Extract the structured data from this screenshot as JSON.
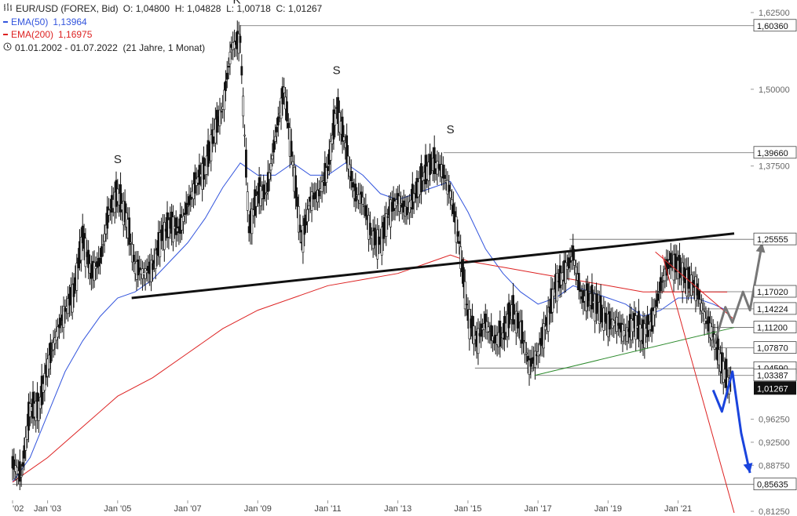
{
  "header": {
    "instrument": "EUR/USD (FOREX, Bid)",
    "ohlc": "O: 1,04800  H: 1,04828  L: 1,00718  C: 1,01267",
    "ema50_label": "EMA(50)",
    "ema50_value": "1,13964",
    "ema200_label": "EMA(200)",
    "ema200_value": "1,16975",
    "period": "01.01.2002 - 01.07.2022  (21 Jahre, 1 Monat)"
  },
  "colors": {
    "ema50": "#3355dd",
    "ema200": "#dd2222",
    "candle": "#111111",
    "green_line": "#2e8b2e",
    "arrow_up": "#777777",
    "arrow_down": "#1a44dd",
    "last_price_bg": "#111111"
  },
  "chart_data": {
    "type": "line",
    "title": "",
    "xlabel": "",
    "ylabel": "",
    "ylim": [
      0.8125,
      1.625
    ],
    "xlim": [
      2002.0,
      2022.6
    ],
    "x_tick_labels": [
      {
        "x": 2002.0,
        "label": "'02"
      },
      {
        "x": 2003.0,
        "label": "Jan '03"
      },
      {
        "x": 2005.0,
        "label": "Jan '05"
      },
      {
        "x": 2007.0,
        "label": "Jan '07"
      },
      {
        "x": 2009.0,
        "label": "Jan '09"
      },
      {
        "x": 2011.0,
        "label": "Jan '11"
      },
      {
        "x": 2013.0,
        "label": "Jan '13"
      },
      {
        "x": 2015.0,
        "label": "Jan '15"
      },
      {
        "x": 2017.0,
        "label": "Jan '17"
      },
      {
        "x": 2019.0,
        "label": "Jan '19"
      },
      {
        "x": 2021.0,
        "label": "Jan '21"
      }
    ],
    "y_tick_labels": [
      "1,62500",
      "1,50000",
      "1,37500",
      "0,96250",
      "0,92500",
      "0,88750",
      "0,81250"
    ],
    "y_tick_values": [
      1.625,
      1.5,
      1.375,
      0.9625,
      0.925,
      0.8875,
      0.8125
    ],
    "levels": [
      {
        "value": 1.6036,
        "label": "1,60360",
        "from_x": 2008.5
      },
      {
        "value": 1.3966,
        "label": "1,39660",
        "from_x": 2014.3
      },
      {
        "value": 1.25555,
        "label": "1,25555",
        "from_x": 2017.9
      },
      {
        "value": 1.1702,
        "label": "1,17020",
        "from_x": 2020.2
      },
      {
        "value": 1.14224,
        "label": "1,14224",
        "from_x": 2020.2
      },
      {
        "value": 1.112,
        "label": "1,11200",
        "from_x": 2022.0
      },
      {
        "value": 1.0787,
        "label": "1,07870",
        "from_x": 2022.0
      },
      {
        "value": 1.0459,
        "label": "1,04590",
        "from_x": 2015.2
      },
      {
        "value": 1.03387,
        "label": "1,03387",
        "from_x": 2016.9
      },
      {
        "value": 0.85635,
        "label": "0,85635",
        "from_x": 2002.0
      }
    ],
    "last_price": {
      "value": 1.01267,
      "label": "1,01267"
    },
    "series": [
      {
        "style": "ohlc",
        "points": [
          [
            2002.0,
            0.89
          ],
          [
            2002.25,
            0.87
          ],
          [
            2002.5,
            0.98
          ],
          [
            2002.75,
            0.98
          ],
          [
            2003.0,
            1.05
          ],
          [
            2003.25,
            1.1
          ],
          [
            2003.5,
            1.14
          ],
          [
            2003.75,
            1.17
          ],
          [
            2004.0,
            1.26
          ],
          [
            2004.25,
            1.2
          ],
          [
            2004.5,
            1.22
          ],
          [
            2004.75,
            1.3
          ],
          [
            2005.0,
            1.33
          ],
          [
            2005.25,
            1.29
          ],
          [
            2005.5,
            1.21
          ],
          [
            2005.75,
            1.2
          ],
          [
            2006.0,
            1.21
          ],
          [
            2006.25,
            1.26
          ],
          [
            2006.5,
            1.28
          ],
          [
            2006.75,
            1.27
          ],
          [
            2007.0,
            1.31
          ],
          [
            2007.25,
            1.35
          ],
          [
            2007.5,
            1.37
          ],
          [
            2007.75,
            1.43
          ],
          [
            2008.0,
            1.47
          ],
          [
            2008.25,
            1.57
          ],
          [
            2008.5,
            1.58
          ],
          [
            2008.75,
            1.27
          ],
          [
            2009.0,
            1.33
          ],
          [
            2009.25,
            1.33
          ],
          [
            2009.5,
            1.42
          ],
          [
            2009.75,
            1.5
          ],
          [
            2010.0,
            1.38
          ],
          [
            2010.25,
            1.25
          ],
          [
            2010.5,
            1.32
          ],
          [
            2010.75,
            1.33
          ],
          [
            2011.0,
            1.37
          ],
          [
            2011.25,
            1.47
          ],
          [
            2011.5,
            1.41
          ],
          [
            2011.75,
            1.33
          ],
          [
            2012.0,
            1.32
          ],
          [
            2012.25,
            1.26
          ],
          [
            2012.5,
            1.25
          ],
          [
            2012.75,
            1.3
          ],
          [
            2013.0,
            1.32
          ],
          [
            2013.25,
            1.3
          ],
          [
            2013.5,
            1.33
          ],
          [
            2013.75,
            1.36
          ],
          [
            2014.0,
            1.38
          ],
          [
            2014.25,
            1.37
          ],
          [
            2014.5,
            1.33
          ],
          [
            2014.75,
            1.25
          ],
          [
            2015.0,
            1.13
          ],
          [
            2015.25,
            1.09
          ],
          [
            2015.5,
            1.12
          ],
          [
            2015.75,
            1.09
          ],
          [
            2016.0,
            1.1
          ],
          [
            2016.25,
            1.14
          ],
          [
            2016.5,
            1.11
          ],
          [
            2016.75,
            1.05
          ],
          [
            2017.0,
            1.07
          ],
          [
            2017.25,
            1.12
          ],
          [
            2017.5,
            1.18
          ],
          [
            2017.75,
            1.2
          ],
          [
            2018.0,
            1.23
          ],
          [
            2018.25,
            1.16
          ],
          [
            2018.5,
            1.16
          ],
          [
            2018.75,
            1.14
          ],
          [
            2019.0,
            1.12
          ],
          [
            2019.25,
            1.12
          ],
          [
            2019.5,
            1.1
          ],
          [
            2019.75,
            1.12
          ],
          [
            2020.0,
            1.1
          ],
          [
            2020.25,
            1.12
          ],
          [
            2020.5,
            1.18
          ],
          [
            2020.75,
            1.22
          ],
          [
            2021.0,
            1.21
          ],
          [
            2021.25,
            1.19
          ],
          [
            2021.5,
            1.18
          ],
          [
            2021.75,
            1.13
          ],
          [
            2022.0,
            1.1
          ],
          [
            2022.25,
            1.05
          ],
          [
            2022.5,
            1.01267
          ]
        ]
      },
      {
        "name": "EMA(50)",
        "style": "line",
        "points": [
          [
            2002.0,
            0.86
          ],
          [
            2002.5,
            0.9
          ],
          [
            2003.0,
            0.97
          ],
          [
            2003.5,
            1.04
          ],
          [
            2004.0,
            1.09
          ],
          [
            2004.5,
            1.13
          ],
          [
            2005.0,
            1.16
          ],
          [
            2005.5,
            1.17
          ],
          [
            2006.0,
            1.19
          ],
          [
            2006.5,
            1.22
          ],
          [
            2007.0,
            1.25
          ],
          [
            2007.5,
            1.29
          ],
          [
            2008.0,
            1.34
          ],
          [
            2008.5,
            1.38
          ],
          [
            2009.0,
            1.36
          ],
          [
            2009.5,
            1.36
          ],
          [
            2010.0,
            1.38
          ],
          [
            2010.5,
            1.36
          ],
          [
            2011.0,
            1.36
          ],
          [
            2011.5,
            1.38
          ],
          [
            2012.0,
            1.36
          ],
          [
            2012.5,
            1.33
          ],
          [
            2013.0,
            1.32
          ],
          [
            2013.5,
            1.33
          ],
          [
            2014.0,
            1.34
          ],
          [
            2014.5,
            1.35
          ],
          [
            2015.0,
            1.3
          ],
          [
            2015.5,
            1.24
          ],
          [
            2016.0,
            1.2
          ],
          [
            2016.5,
            1.17
          ],
          [
            2017.0,
            1.15
          ],
          [
            2017.5,
            1.16
          ],
          [
            2018.0,
            1.18
          ],
          [
            2018.5,
            1.17
          ],
          [
            2019.0,
            1.16
          ],
          [
            2019.5,
            1.15
          ],
          [
            2020.0,
            1.13
          ],
          [
            2020.5,
            1.14
          ],
          [
            2021.0,
            1.16
          ],
          [
            2021.5,
            1.16
          ],
          [
            2022.0,
            1.15
          ],
          [
            2022.4,
            1.13964
          ]
        ]
      },
      {
        "name": "EMA(200)",
        "style": "line",
        "points": [
          [
            2002.0,
            0.86
          ],
          [
            2003.0,
            0.9
          ],
          [
            2004.0,
            0.95
          ],
          [
            2005.0,
            1.0
          ],
          [
            2006.0,
            1.03
          ],
          [
            2007.0,
            1.07
          ],
          [
            2008.0,
            1.11
          ],
          [
            2009.0,
            1.14
          ],
          [
            2010.0,
            1.16
          ],
          [
            2011.0,
            1.18
          ],
          [
            2012.0,
            1.19
          ],
          [
            2013.0,
            1.2
          ],
          [
            2014.0,
            1.22
          ],
          [
            2014.5,
            1.23
          ],
          [
            2015.0,
            1.22
          ],
          [
            2016.0,
            1.21
          ],
          [
            2017.0,
            1.2
          ],
          [
            2018.0,
            1.19
          ],
          [
            2019.0,
            1.18
          ],
          [
            2020.0,
            1.17
          ],
          [
            2021.0,
            1.17
          ],
          [
            2021.75,
            1.17
          ],
          [
            2022.4,
            1.16975
          ]
        ]
      }
    ],
    "annotations": [
      {
        "text": "S",
        "x": 2005.0,
        "y": 1.38
      },
      {
        "text": "K",
        "x": 2008.4,
        "y": 1.64
      },
      {
        "text": "S",
        "x": 2011.25,
        "y": 1.525
      },
      {
        "text": "S",
        "x": 2014.5,
        "y": 1.428
      }
    ],
    "trend_lines": [
      {
        "name": "neckline",
        "from": [
          2005.4,
          1.16
        ],
        "to": [
          2022.6,
          1.265
        ],
        "color": "#111111"
      },
      {
        "name": "green-support",
        "from": [
          2016.9,
          1.03387
        ],
        "to": [
          2022.6,
          1.112
        ],
        "color": "#2e8b2e"
      },
      {
        "name": "red-resistance-upper",
        "from": [
          2020.35,
          1.235
        ],
        "to": [
          2022.6,
          1.125
        ],
        "color": "#dd2222"
      },
      {
        "name": "red-resistance-steep",
        "from": [
          2020.55,
          1.23
        ],
        "to": [
          2022.6,
          0.81
        ],
        "color": "#dd2222"
      }
    ],
    "scenario_up": [
      [
        2022.0,
        1.0787
      ],
      [
        2022.35,
        1.145
      ],
      [
        2022.55,
        1.12
      ],
      [
        2022.85,
        1.17
      ],
      [
        2023.05,
        1.14
      ],
      [
        2023.4,
        1.25
      ]
    ],
    "scenario_down": [
      [
        2022.0,
        1.01
      ],
      [
        2022.25,
        0.975
      ],
      [
        2022.55,
        1.04
      ],
      [
        2022.8,
        0.94
      ],
      [
        2023.05,
        0.875
      ]
    ]
  }
}
